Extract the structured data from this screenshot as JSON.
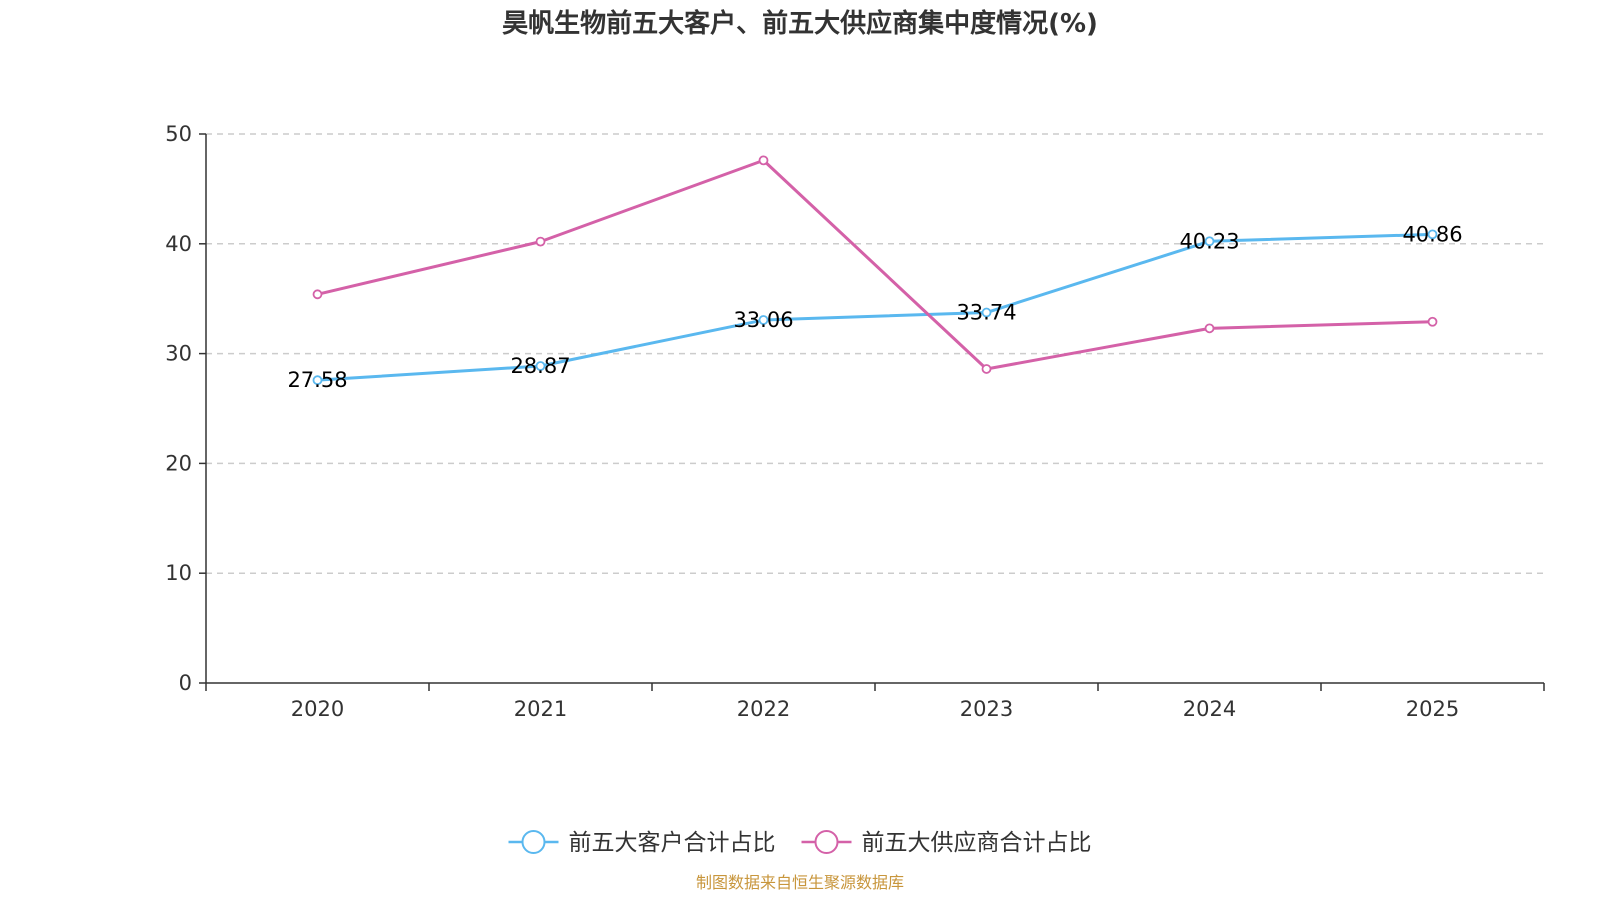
{
  "title": "昊帆生物前五大客户、前五大供应商集中度情况(%)",
  "source": "制图数据来自恒生聚源数据库",
  "chart_data": {
    "type": "line",
    "title": "昊帆生物前五大客户、前五大供应商集中度情况(%)",
    "xlabel": "",
    "ylabel": "",
    "categories": [
      "2020",
      "2021",
      "2022",
      "2023",
      "2024",
      "2025"
    ],
    "ylim": [
      0,
      50
    ],
    "yticks": [
      "0",
      "10",
      "20",
      "30",
      "40",
      "50"
    ],
    "grid": true,
    "legend_position": "bottom-center",
    "series": [
      {
        "name": "前五大客户合计占比",
        "color": "#5ab8ef",
        "values": [
          27.58,
          28.87,
          33.06,
          33.74,
          40.23,
          40.86
        ],
        "labels": [
          "27.58",
          "28.87",
          "33.06",
          "33.74",
          "40.23",
          "40.86"
        ]
      },
      {
        "name": "前五大供应商合计占比",
        "color": "#d461a8",
        "values": [
          35.4,
          40.2,
          47.6,
          28.6,
          32.3,
          32.9
        ],
        "labels": null
      }
    ]
  }
}
